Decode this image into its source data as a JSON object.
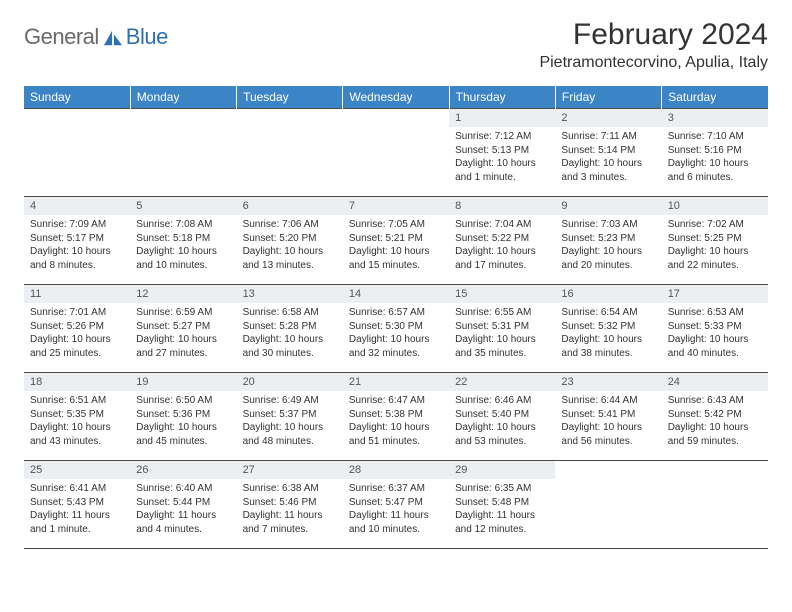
{
  "brand": {
    "general": "General",
    "blue": "Blue"
  },
  "header": {
    "month_title": "February 2024",
    "location": "Pietramontecorvino, Apulia, Italy"
  },
  "colors": {
    "header_bg": "#3b85c6",
    "header_text": "#ffffff",
    "daynum_bg": "#eceff1",
    "cell_border": "#4a4a4a",
    "body_text": "#333333",
    "logo_gray": "#6a6a6a",
    "logo_blue": "#2f6fb0",
    "page_bg": "#ffffff"
  },
  "typography": {
    "month_title_pt": 30,
    "location_pt": 16,
    "weekday_pt": 12,
    "daynum_pt": 11,
    "body_pt": 10
  },
  "calendar": {
    "columns": 7,
    "rows": 5,
    "weekdays": [
      "Sunday",
      "Monday",
      "Tuesday",
      "Wednesday",
      "Thursday",
      "Friday",
      "Saturday"
    ],
    "first_day_column_index": 4,
    "days": [
      {
        "n": 1,
        "sunrise": "7:12 AM",
        "sunset": "5:13 PM",
        "daylight": "10 hours and 1 minute."
      },
      {
        "n": 2,
        "sunrise": "7:11 AM",
        "sunset": "5:14 PM",
        "daylight": "10 hours and 3 minutes."
      },
      {
        "n": 3,
        "sunrise": "7:10 AM",
        "sunset": "5:16 PM",
        "daylight": "10 hours and 6 minutes."
      },
      {
        "n": 4,
        "sunrise": "7:09 AM",
        "sunset": "5:17 PM",
        "daylight": "10 hours and 8 minutes."
      },
      {
        "n": 5,
        "sunrise": "7:08 AM",
        "sunset": "5:18 PM",
        "daylight": "10 hours and 10 minutes."
      },
      {
        "n": 6,
        "sunrise": "7:06 AM",
        "sunset": "5:20 PM",
        "daylight": "10 hours and 13 minutes."
      },
      {
        "n": 7,
        "sunrise": "7:05 AM",
        "sunset": "5:21 PM",
        "daylight": "10 hours and 15 minutes."
      },
      {
        "n": 8,
        "sunrise": "7:04 AM",
        "sunset": "5:22 PM",
        "daylight": "10 hours and 17 minutes."
      },
      {
        "n": 9,
        "sunrise": "7:03 AM",
        "sunset": "5:23 PM",
        "daylight": "10 hours and 20 minutes."
      },
      {
        "n": 10,
        "sunrise": "7:02 AM",
        "sunset": "5:25 PM",
        "daylight": "10 hours and 22 minutes."
      },
      {
        "n": 11,
        "sunrise": "7:01 AM",
        "sunset": "5:26 PM",
        "daylight": "10 hours and 25 minutes."
      },
      {
        "n": 12,
        "sunrise": "6:59 AM",
        "sunset": "5:27 PM",
        "daylight": "10 hours and 27 minutes."
      },
      {
        "n": 13,
        "sunrise": "6:58 AM",
        "sunset": "5:28 PM",
        "daylight": "10 hours and 30 minutes."
      },
      {
        "n": 14,
        "sunrise": "6:57 AM",
        "sunset": "5:30 PM",
        "daylight": "10 hours and 32 minutes."
      },
      {
        "n": 15,
        "sunrise": "6:55 AM",
        "sunset": "5:31 PM",
        "daylight": "10 hours and 35 minutes."
      },
      {
        "n": 16,
        "sunrise": "6:54 AM",
        "sunset": "5:32 PM",
        "daylight": "10 hours and 38 minutes."
      },
      {
        "n": 17,
        "sunrise": "6:53 AM",
        "sunset": "5:33 PM",
        "daylight": "10 hours and 40 minutes."
      },
      {
        "n": 18,
        "sunrise": "6:51 AM",
        "sunset": "5:35 PM",
        "daylight": "10 hours and 43 minutes."
      },
      {
        "n": 19,
        "sunrise": "6:50 AM",
        "sunset": "5:36 PM",
        "daylight": "10 hours and 45 minutes."
      },
      {
        "n": 20,
        "sunrise": "6:49 AM",
        "sunset": "5:37 PM",
        "daylight": "10 hours and 48 minutes."
      },
      {
        "n": 21,
        "sunrise": "6:47 AM",
        "sunset": "5:38 PM",
        "daylight": "10 hours and 51 minutes."
      },
      {
        "n": 22,
        "sunrise": "6:46 AM",
        "sunset": "5:40 PM",
        "daylight": "10 hours and 53 minutes."
      },
      {
        "n": 23,
        "sunrise": "6:44 AM",
        "sunset": "5:41 PM",
        "daylight": "10 hours and 56 minutes."
      },
      {
        "n": 24,
        "sunrise": "6:43 AM",
        "sunset": "5:42 PM",
        "daylight": "10 hours and 59 minutes."
      },
      {
        "n": 25,
        "sunrise": "6:41 AM",
        "sunset": "5:43 PM",
        "daylight": "11 hours and 1 minute."
      },
      {
        "n": 26,
        "sunrise": "6:40 AM",
        "sunset": "5:44 PM",
        "daylight": "11 hours and 4 minutes."
      },
      {
        "n": 27,
        "sunrise": "6:38 AM",
        "sunset": "5:46 PM",
        "daylight": "11 hours and 7 minutes."
      },
      {
        "n": 28,
        "sunrise": "6:37 AM",
        "sunset": "5:47 PM",
        "daylight": "11 hours and 10 minutes."
      },
      {
        "n": 29,
        "sunrise": "6:35 AM",
        "sunset": "5:48 PM",
        "daylight": "11 hours and 12 minutes."
      }
    ],
    "labels": {
      "sunrise": "Sunrise: ",
      "sunset": "Sunset: ",
      "daylight": "Daylight: "
    }
  }
}
